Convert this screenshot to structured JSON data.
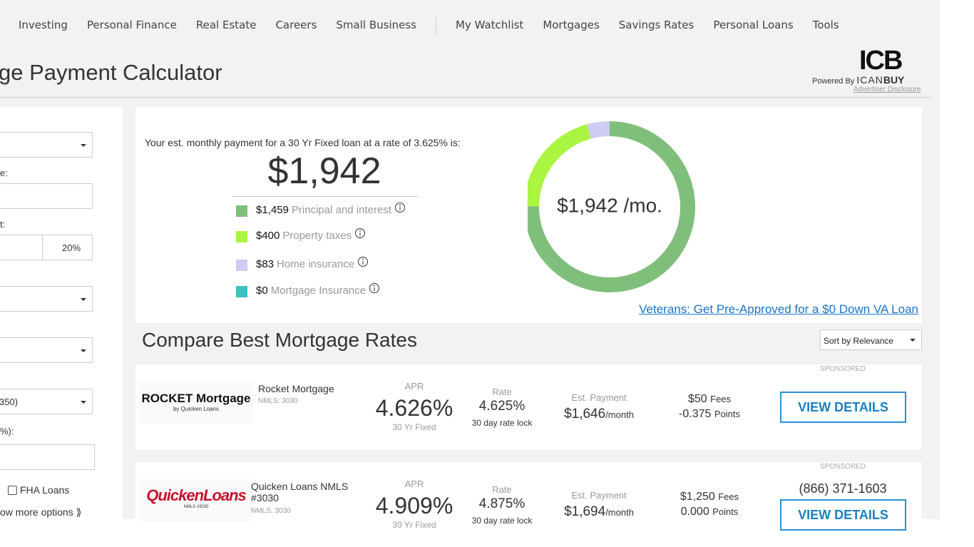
{
  "nav": [
    "Investing",
    "Personal Finance",
    "Real Estate",
    "Careers",
    "Small Business",
    "My Watchlist",
    "Mortgages",
    "Savings Rates",
    "Personal Loans",
    "Tools"
  ],
  "header": {
    "title": "ge Payment Calculator",
    "powered_by": "Powered By",
    "logo": "ICB",
    "brand_a": "ICAN",
    "brand_b": "BUY",
    "disclosure": "Advertiser Disclosure"
  },
  "form": {
    "label_1": "e:",
    "label_2": "t:",
    "down_pct": "20%",
    "credit": "350)",
    "label_3": "%):",
    "fha": "FHA Loans",
    "more": "ow more options ⟫"
  },
  "summary": {
    "intro": "Your est. monthly payment for a 30 Yr Fixed loan at a rate of 3.625% is:",
    "total": "$1,942",
    "names": [
      "Principal and interest",
      "Property taxes",
      "Home insurance",
      "Mortgage Insurance"
    ],
    "values": [
      1459,
      400,
      83,
      0
    ],
    "value_labels": [
      "$1,459",
      "$400",
      "$83",
      "$0"
    ],
    "colors": [
      "#7fbf7b",
      "#aaf542",
      "#ccccf5",
      "#3cbfbf"
    ],
    "donut_label": "$1,942 /mo.",
    "va_link": "Veterans: Get Pre-Approved for a $0 Down VA Loan"
  },
  "compare": {
    "title": "Compare Best Mortgage Rates",
    "sort": "Sort by Relevance"
  },
  "rates": [
    {
      "logo_a": "ROCKET Mortgage",
      "logo_b": "by Quicken Loans",
      "name": "Rocket Mortgage",
      "nmls": "NMLS: 3030",
      "apr_label": "APR",
      "apr": "4.626%",
      "apr_sub": "30 Yr Fixed",
      "rate_label": "Rate",
      "rate": "4.625%",
      "rate_sub": "30 day rate lock",
      "payment_label": "Est. Payment",
      "payment": "$1,646",
      "payment_unit": "/month",
      "fees": "$50",
      "fees_unit": "Fees",
      "points": "-0.375",
      "points_unit": "Points",
      "sponsored": "SPONSORED",
      "button": "VIEW DETAILS"
    },
    {
      "logo_a": "QuickenLoans",
      "logo_b": "NMLS #3030",
      "name": "Quicken Loans NMLS #3030",
      "nmls": "NMLS: 3030",
      "apr_label": "APR",
      "apr": "4.909%",
      "apr_sub": "30 Yr Fixed",
      "rate_label": "Rate",
      "rate": "4.875%",
      "rate_sub": "30 day rate lock",
      "payment_label": "Est. Payment",
      "payment": "$1,694",
      "payment_unit": "/month",
      "fees": "$1,250",
      "fees_unit": "Fees",
      "points": "0.000",
      "points_unit": "Points",
      "sponsored": "SPONSORED",
      "phone": "(866) 371-1603",
      "button": "VIEW DETAILS"
    }
  ]
}
